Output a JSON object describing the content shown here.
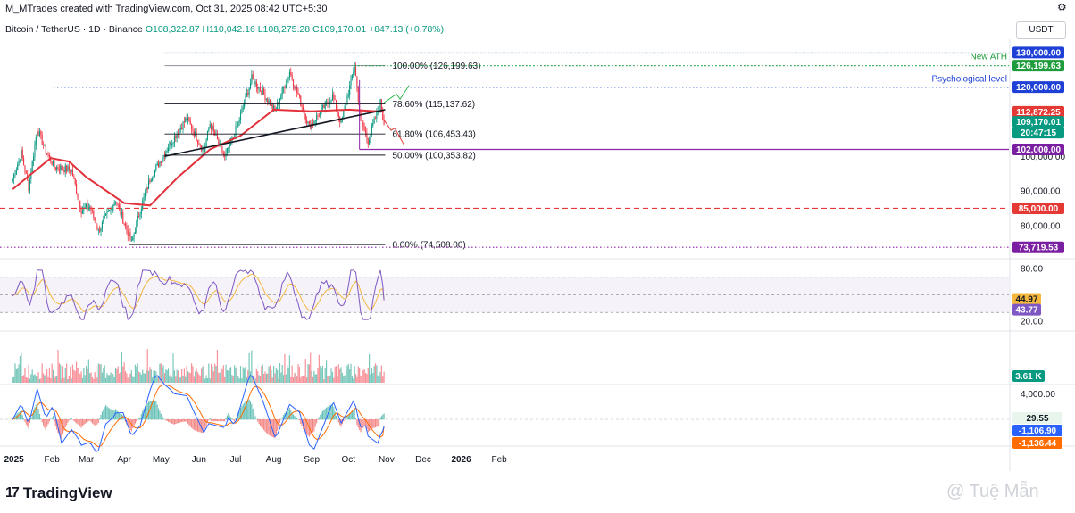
{
  "header": {
    "author_line": "M_MTrades created with TradingView.com, Oct 31, 2025 08:42 UTC+5:30",
    "symbol": "Bitcoin / TetherUS · 1D · Binance",
    "ohlc": "O108,322.87 H110,042.16 L108,275.28 C109,170.01 +847.13 (+0.78%)",
    "quote_currency": "USDT"
  },
  "colors": {
    "up": "#089981",
    "down": "#f23645",
    "ma": "#e2313a",
    "rsi": "#7e57c2",
    "rsi_ma": "#f5b83d",
    "macd": "#2962ff",
    "signal": "#ff6d00",
    "fib": "#131722",
    "ath": "#1e9c3b",
    "psych": "#1e40d6",
    "support": "#8e24aa",
    "red_dash": "#e53935"
  },
  "chart_data": [
    {
      "type": "candlestick",
      "title": "Bitcoin / TetherUS · 1D · Binance",
      "x_ticks": [
        "2025",
        "Feb",
        "Mar",
        "Apr",
        "May",
        "Jun",
        "Jul",
        "Aug",
        "Sep",
        "Oct",
        "Nov",
        "Dec",
        "2026",
        "Feb"
      ],
      "y_ticks": [
        "80,000.00",
        "90,000.00",
        "100,000.00"
      ],
      "ylim": [
        70000,
        131000
      ],
      "last_close": 109170.01,
      "price_path": [
        [
          "2024-12-31",
          93500
        ],
        [
          "2025-01-07",
          101000
        ],
        [
          "2025-01-13",
          91000
        ],
        [
          "2025-01-20",
          108000
        ],
        [
          "2025-01-27",
          101500
        ],
        [
          "2025-02-03",
          97000
        ],
        [
          "2025-02-17",
          96000
        ],
        [
          "2025-02-25",
          84500
        ],
        [
          "2025-03-04",
          85500
        ],
        [
          "2025-03-11",
          78500
        ],
        [
          "2025-03-25",
          87500
        ],
        [
          "2025-04-07",
          75000
        ],
        [
          "2025-04-14",
          84500
        ],
        [
          "2025-04-22",
          93500
        ],
        [
          "2025-05-08",
          103500
        ],
        [
          "2025-05-22",
          111000
        ],
        [
          "2025-06-05",
          101500
        ],
        [
          "2025-06-10",
          109500
        ],
        [
          "2025-06-22",
          99500
        ],
        [
          "2025-07-03",
          109500
        ],
        [
          "2025-07-14",
          122500
        ],
        [
          "2025-07-24",
          118000
        ],
        [
          "2025-08-02",
          113000
        ],
        [
          "2025-08-14",
          124500
        ],
        [
          "2025-08-30",
          108500
        ],
        [
          "2025-09-18",
          117500
        ],
        [
          "2025-09-25",
          109500
        ],
        [
          "2025-10-06",
          126199
        ],
        [
          "2025-10-11",
          110500
        ],
        [
          "2025-10-17",
          104500
        ],
        [
          "2025-10-27",
          115500
        ],
        [
          "2025-10-30",
          109170
        ]
      ],
      "moving_average_path": [
        [
          "2024-12-31",
          90500
        ],
        [
          "2025-01-31",
          99500
        ],
        [
          "2025-02-15",
          98500
        ],
        [
          "2025-03-01",
          94000
        ],
        [
          "2025-04-01",
          86500
        ],
        [
          "2025-04-22",
          85800
        ],
        [
          "2025-05-15",
          94000
        ],
        [
          "2025-06-10",
          102000
        ],
        [
          "2025-07-05",
          106000
        ],
        [
          "2025-08-01",
          113500
        ],
        [
          "2025-09-01",
          113000
        ],
        [
          "2025-10-01",
          113500
        ],
        [
          "2025-10-30",
          112872
        ]
      ],
      "fib_levels": [
        {
          "label": "100.00% (126,199.63)",
          "price": 126199.63
        },
        {
          "label": "78.60% (115,137.62)",
          "price": 115137.62
        },
        {
          "label": "61.80% (106,453.43)",
          "price": 106453.43
        },
        {
          "label": "50.00% (100,353.82)",
          "price": 100353.82
        },
        {
          "label": "0.00% (74,508.00)",
          "price": 74508
        }
      ],
      "annotations": [
        {
          "text": "New ATH",
          "price": 126199.63
        },
        {
          "text": "Psychological level",
          "price": 120000
        }
      ],
      "trendline": [
        [
          "2025-05-04",
          100000
        ],
        [
          "2025-10-31",
          113500
        ]
      ],
      "support_line": 102000,
      "price_tags": [
        {
          "label": "130,000.00",
          "kind": "blue",
          "price": 130000
        },
        {
          "label": "126,199.63",
          "kind": "green",
          "price": 126199.63
        },
        {
          "label": "120,000.00",
          "kind": "blue",
          "price": 120000
        },
        {
          "label": "112,872.25",
          "kind": "red",
          "price": 112872.25
        },
        {
          "label": "109,170.01",
          "kind": "teal",
          "price": 109170.01
        },
        {
          "label": "20:47:15",
          "kind": "teal-sub",
          "price": 109170.01
        },
        {
          "label": "102,000.00",
          "kind": "purple",
          "price": 102000
        },
        {
          "label": "85,000.00",
          "kind": "red",
          "price": 85000
        },
        {
          "label": "73,719.53",
          "kind": "purple",
          "price": 73719.53
        }
      ]
    },
    {
      "type": "line",
      "title": "RSI",
      "y_ticks": [
        "80.00",
        "20.00"
      ],
      "ylim": [
        15,
        85
      ],
      "band": [
        30,
        70
      ],
      "rsi_last": 43.77,
      "rsi_ma_last": 44.97,
      "tags": [
        "44.97",
        "43.77"
      ]
    },
    {
      "type": "bar",
      "title": "Volume",
      "last_label": "3.61 K"
    },
    {
      "type": "line",
      "title": "MACD",
      "y_ticks": [
        "4,000.00"
      ],
      "hist_last": 29.55,
      "macd_last": -1106.9,
      "signal_last": -1136.44,
      "tags": [
        "29.55",
        "-1,106.90",
        "-1,136.44"
      ]
    }
  ],
  "footer": {
    "brand": "TradingView",
    "logo_mark": "17",
    "watermark": "@ Tuệ Mẫn"
  }
}
